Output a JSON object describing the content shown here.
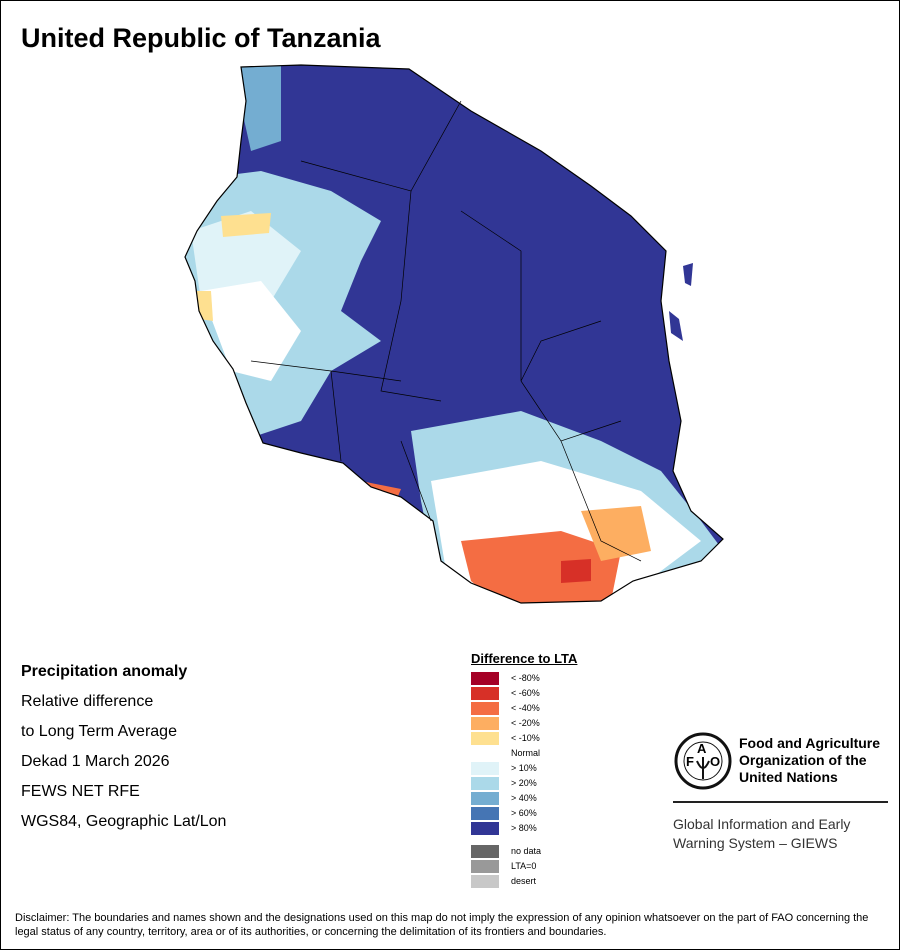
{
  "title": "United Republic of Tanzania",
  "info": {
    "heading": "Precipitation anomaly",
    "lines": [
      "Relative difference",
      "to Long Term Average",
      "Dekad 1 March 2026",
      "FEWS NET RFE",
      "WGS84, Geographic Lat/Lon"
    ]
  },
  "legend": {
    "title": "Difference to LTA",
    "items": [
      {
        "label": "< -80%",
        "color": "#a50026"
      },
      {
        "label": "< -60%",
        "color": "#d73027"
      },
      {
        "label": "< -40%",
        "color": "#f46d43"
      },
      {
        "label": "< -20%",
        "color": "#fdae61"
      },
      {
        "label": "< -10%",
        "color": "#fee090"
      },
      {
        "label": "Normal",
        "color": "#ffffff"
      },
      {
        "label": "> 10%",
        "color": "#e0f3f8"
      },
      {
        "label": "> 20%",
        "color": "#abd9e9"
      },
      {
        "label": "> 40%",
        "color": "#74add1"
      },
      {
        "label": "> 60%",
        "color": "#4575b4"
      },
      {
        "label": "> 80%",
        "color": "#313695"
      }
    ],
    "extra": [
      {
        "label": "no data",
        "color": "#666666"
      },
      {
        "label": "LTA=0",
        "color": "#999999"
      },
      {
        "label": "desert",
        "color": "#c8c8c8"
      }
    ]
  },
  "fao": {
    "logo_letters": "FAO FIAT PANIS",
    "name": "Food and Agriculture Organization of the United Nations",
    "giews": "Global Information and Early Warning System – GIEWS"
  },
  "disclaimer": "Disclaimer: The boundaries and names shown and the designations used on this map do not imply the expression of any opinion whatsoever on the part of FAO concerning the legal status of any country, territory, area or of its authorities, or concerning the delimitation of its frontiers and boundaries."
}
